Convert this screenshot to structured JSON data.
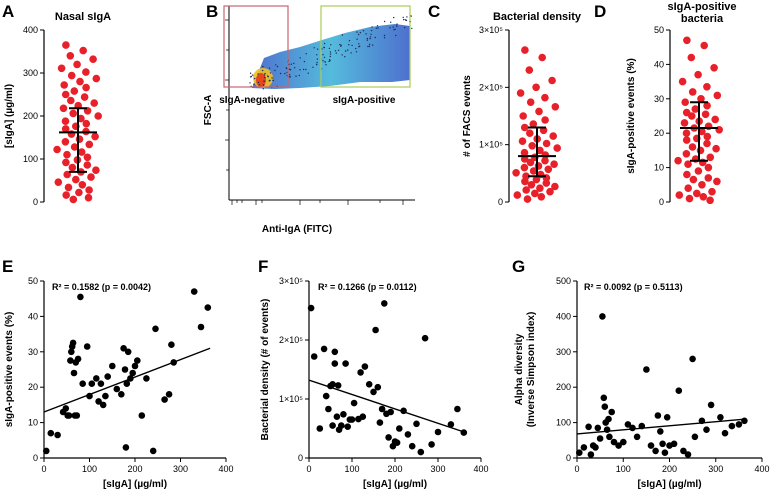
{
  "figure": {
    "letters": {
      "A": "A",
      "B": "B",
      "C": "C",
      "D": "D",
      "E": "E",
      "F": "F",
      "G": "G"
    }
  },
  "flow": {
    "ylabel": "FSC-A",
    "xlabel": "Anti-IgA (FITC)",
    "gate_negative": "sIgA-negative",
    "gate_positive": "sIgA-positive",
    "colors": {
      "negative_gate": "#c9646e",
      "positive_gate": "#aacc55"
    }
  },
  "chart_data": [
    {
      "id": "A",
      "type": "scatter",
      "subtype": "column-scatter",
      "title": "Nasal sIgA",
      "ylabel": "[sIgA] (µg/ml)",
      "ylim": [
        0,
        400
      ],
      "yticks": [
        "0",
        "100",
        "200",
        "300",
        "400"
      ],
      "mean": 162,
      "error_low": 70,
      "error_high": 218,
      "point_color": "#e8202a",
      "values": [
        365,
        352,
        340,
        332,
        320,
        311,
        302,
        294,
        287,
        280,
        272,
        266,
        258,
        250,
        244,
        236,
        230,
        224,
        218,
        212,
        206,
        200,
        194,
        188,
        182,
        176,
        170,
        164,
        158,
        152,
        146,
        140,
        134,
        128,
        122,
        116,
        110,
        104,
        98,
        92,
        86,
        80,
        74,
        70,
        64,
        58,
        52,
        46,
        40,
        34,
        28,
        22,
        16,
        10,
        6
      ]
    },
    {
      "id": "C",
      "type": "scatter",
      "subtype": "column-scatter",
      "title": "Bacterial density",
      "ylabel": "# of FACS events",
      "ylim": [
        0,
        300000
      ],
      "yticks": [
        "0",
        "1×10⁵",
        "2×10⁵",
        "3×10⁵"
      ],
      "mean": 80000,
      "error_low": 45000,
      "error_high": 130000,
      "point_color": "#e8202a",
      "values": [
        265000,
        252000,
        230000,
        212000,
        200000,
        190000,
        182000,
        174000,
        166000,
        158000,
        150000,
        143000,
        136000,
        130000,
        125000,
        120000,
        115000,
        110000,
        106000,
        102000,
        98000,
        94000,
        90000,
        86000,
        82000,
        78000,
        75000,
        72000,
        69000,
        66000,
        63000,
        60000,
        57000,
        54000,
        51000,
        48000,
        45000,
        42000,
        39000,
        36000,
        33000,
        30000,
        27000,
        24000,
        21000,
        18000,
        15000,
        12000,
        9000,
        5000
      ]
    },
    {
      "id": "D",
      "type": "scatter",
      "subtype": "column-scatter",
      "title": "sIgA-positive bacteria",
      "title_lines": [
        "sIgA-positive",
        "bacteria"
      ],
      "ylabel": "sIgA-positive events (%)",
      "ylim": [
        0,
        50
      ],
      "yticks": [
        "0",
        "10",
        "20",
        "30",
        "40",
        "50"
      ],
      "mean": 21.5,
      "error_low": 12,
      "error_high": 29,
      "point_color": "#e8202a",
      "values": [
        47,
        45.5,
        42,
        39,
        37,
        35,
        33.5,
        32,
        31,
        30,
        29,
        28,
        27,
        26,
        25.5,
        25,
        24,
        23.5,
        23,
        22,
        21.5,
        21,
        20.5,
        20,
        19,
        18.5,
        18,
        17,
        16,
        15.5,
        15,
        14,
        13,
        12.5,
        12,
        11.5,
        11,
        10,
        9,
        8,
        7,
        6.5,
        6,
        5,
        4,
        3,
        2.5,
        2,
        1.5,
        1,
        0.5
      ]
    },
    {
      "id": "E",
      "type": "scatter",
      "annotation": "R² = 0.1582 (p = 0.0042)",
      "xlabel": "[sIgA] (µg/ml)",
      "ylabel": "sIgA-positive events (%)",
      "xlim": [
        0,
        400
      ],
      "ylim": [
        0,
        50
      ],
      "xticks": [
        "0",
        "100",
        "200",
        "300",
        "400"
      ],
      "yticks": [
        "0",
        "10",
        "20",
        "30",
        "40",
        "50"
      ],
      "fit": {
        "x0": 0,
        "y0": 13,
        "x1": 365,
        "y1": 31
      },
      "x": [
        5,
        15,
        30,
        42,
        48,
        52,
        55,
        58,
        60,
        62,
        64,
        66,
        68,
        70,
        72,
        75,
        80,
        85,
        95,
        100,
        105,
        115,
        120,
        125,
        130,
        135,
        140,
        150,
        160,
        170,
        175,
        178,
        180,
        182,
        185,
        190,
        195,
        200,
        205,
        215,
        225,
        240,
        245,
        265,
        275,
        280,
        285,
        330,
        345,
        360
      ],
      "y": [
        2,
        7,
        6.5,
        13,
        14,
        12,
        12,
        27.5,
        30,
        31.5,
        32.5,
        24,
        12,
        27,
        12,
        28,
        45.5,
        21,
        31.5,
        17.5,
        21,
        22.5,
        16,
        21,
        15,
        17.5,
        23,
        26,
        19.5,
        18,
        31,
        25,
        3,
        21,
        30,
        22.5,
        24,
        26,
        27.5,
        12,
        22.5,
        2,
        36.5,
        16.5,
        18,
        32,
        27,
        47,
        37,
        42.5
      ]
    },
    {
      "id": "F",
      "type": "scatter",
      "annotation": "R² = 0.1266 (p = 0.0112)",
      "xlabel": "[sIgA] (µg/ml)",
      "ylabel": "Bacterial density (# of events)",
      "xlim": [
        0,
        400
      ],
      "ylim": [
        0,
        300000
      ],
      "xticks": [
        "0",
        "100",
        "200",
        "300",
        "400"
      ],
      "yticks": [
        "0",
        "1×10⁵",
        "2×10⁵",
        "3×10⁵"
      ],
      "fit": {
        "x0": 0,
        "y0": 132000,
        "x1": 365,
        "y1": 43000
      },
      "x": [
        5,
        12,
        25,
        35,
        40,
        45,
        50,
        55,
        55,
        60,
        60,
        65,
        68,
        70,
        75,
        80,
        85,
        90,
        95,
        100,
        105,
        115,
        120,
        125,
        130,
        140,
        150,
        155,
        160,
        165,
        170,
        175,
        180,
        185,
        190,
        195,
        200,
        205,
        210,
        220,
        230,
        240,
        250,
        260,
        270,
        285,
        300,
        330,
        345,
        360
      ],
      "y": [
        254000,
        172000,
        50000,
        185000,
        105000,
        83000,
        122000,
        55000,
        125000,
        180000,
        160000,
        70000,
        123000,
        48000,
        55000,
        74000,
        160000,
        53000,
        65000,
        65000,
        93000,
        66000,
        145000,
        70000,
        155000,
        125000,
        112000,
        217000,
        120000,
        60000,
        83000,
        262000,
        75000,
        35000,
        78000,
        20000,
        28000,
        26000,
        50000,
        80000,
        40000,
        20000,
        58000,
        10000,
        203000,
        23000,
        44000,
        57000,
        83000,
        43000
      ]
    },
    {
      "id": "G",
      "type": "scatter",
      "annotation": "R² = 0.0092 (p = 0.5113)",
      "xlabel": "[sIgA] (µg/ml)",
      "ylabel": "Alpha diversity (Inverse Simpson index)",
      "ylabel_lines": [
        "Alpha diversity",
        "(Inverse Simpson index)"
      ],
      "xlim": [
        0,
        400
      ],
      "ylim": [
        0,
        500
      ],
      "xticks": [
        "0",
        "100",
        "200",
        "300",
        "400"
      ],
      "yticks": [
        "0",
        "100",
        "200",
        "300",
        "400",
        "500"
      ],
      "fit": {
        "x0": 0,
        "y0": 68,
        "x1": 365,
        "y1": 110
      },
      "x": [
        5,
        15,
        25,
        30,
        35,
        40,
        45,
        50,
        55,
        58,
        60,
        62,
        65,
        68,
        70,
        75,
        80,
        90,
        100,
        110,
        120,
        130,
        140,
        150,
        160,
        170,
        175,
        180,
        185,
        190,
        195,
        200,
        210,
        220,
        230,
        240,
        250,
        255,
        270,
        280,
        290,
        310,
        320,
        335,
        350,
        362
      ],
      "y": [
        15,
        30,
        88,
        10,
        35,
        30,
        85,
        55,
        400,
        170,
        145,
        100,
        80,
        110,
        60,
        130,
        45,
        35,
        45,
        95,
        85,
        60,
        90,
        250,
        35,
        20,
        120,
        75,
        40,
        15,
        115,
        35,
        40,
        190,
        20,
        10,
        280,
        60,
        105,
        80,
        150,
        115,
        70,
        90,
        95,
        105
      ]
    }
  ]
}
